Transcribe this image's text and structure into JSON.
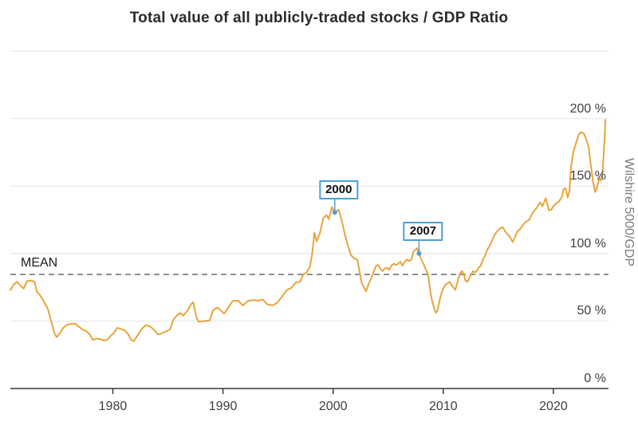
{
  "colors": {
    "background": "#ffffff",
    "line": "#e9a43c",
    "annotation_accent": "#4d9fd6",
    "mean_line": "#8f8f8f",
    "gridline": "#e4e4e4",
    "axis": "#3a3a3a",
    "tick_text": "#3f3f3f",
    "axis_title_text": "#7b7b7b",
    "title_text": "#2b2b2b"
  },
  "chart_data": {
    "type": "line",
    "title": "Total value of all publicly-traded stocks / GDP Ratio",
    "y_axis_label": "Wilshire 5000/GDP",
    "legend": "none",
    "grid": true,
    "x_domain": [
      1970.7,
      2025.0
    ],
    "y_domain": [
      0,
      250
    ],
    "x_ticks": [
      {
        "value": 1980,
        "label": "1980"
      },
      {
        "value": 1990,
        "label": "1990"
      },
      {
        "value": 2000,
        "label": "2000"
      },
      {
        "value": 2010,
        "label": "2010"
      },
      {
        "value": 2020,
        "label": "2020"
      }
    ],
    "y_ticks": [
      {
        "value": 0,
        "label": "0 %"
      },
      {
        "value": 50,
        "label": "50 %"
      },
      {
        "value": 100,
        "label": "100 %"
      },
      {
        "value": 150,
        "label": "150 %"
      },
      {
        "value": 200,
        "label": "200 %"
      }
    ],
    "y_gridlines": [
      50,
      100,
      150,
      200,
      250
    ],
    "mean": {
      "label": "MEAN",
      "value": 84.5
    },
    "annotations": [
      {
        "label": "2000",
        "year": 2000.15,
        "value": 130.5
      },
      {
        "label": "2007",
        "year": 2007.8,
        "value": 100
      }
    ],
    "series": [
      {
        "name": "Wilshire 5000/GDP",
        "unit": "%",
        "points": [
          [
            1970.7,
            73
          ],
          [
            1971.0,
            77
          ],
          [
            1971.3,
            79
          ],
          [
            1971.6,
            76.5
          ],
          [
            1971.9,
            74
          ],
          [
            1972.2,
            79.5
          ],
          [
            1972.6,
            80
          ],
          [
            1972.9,
            79
          ],
          [
            1973.1,
            72
          ],
          [
            1973.4,
            69
          ],
          [
            1973.7,
            65
          ],
          [
            1973.9,
            62
          ],
          [
            1974.1,
            59
          ],
          [
            1974.4,
            50
          ],
          [
            1974.7,
            41
          ],
          [
            1974.9,
            38
          ],
          [
            1975.2,
            41
          ],
          [
            1975.5,
            45
          ],
          [
            1975.8,
            47
          ],
          [
            1976.2,
            48
          ],
          [
            1976.6,
            48
          ],
          [
            1976.9,
            46
          ],
          [
            1977.2,
            44
          ],
          [
            1977.6,
            42.5
          ],
          [
            1977.9,
            40
          ],
          [
            1978.2,
            36
          ],
          [
            1978.5,
            37
          ],
          [
            1978.9,
            36.5
          ],
          [
            1979.2,
            35.5
          ],
          [
            1979.5,
            36
          ],
          [
            1979.8,
            39
          ],
          [
            1980.1,
            41
          ],
          [
            1980.4,
            45
          ],
          [
            1980.8,
            44
          ],
          [
            1981.1,
            43
          ],
          [
            1981.4,
            40
          ],
          [
            1981.7,
            36
          ],
          [
            1981.9,
            35
          ],
          [
            1982.3,
            40
          ],
          [
            1982.6,
            44
          ],
          [
            1983.0,
            47
          ],
          [
            1983.4,
            46
          ],
          [
            1983.8,
            43
          ],
          [
            1984.1,
            40
          ],
          [
            1984.5,
            41
          ],
          [
            1984.9,
            42.5
          ],
          [
            1985.2,
            44
          ],
          [
            1985.5,
            51
          ],
          [
            1985.8,
            54
          ],
          [
            1986.1,
            56
          ],
          [
            1986.4,
            54
          ],
          [
            1986.8,
            58
          ],
          [
            1987.1,
            62.5
          ],
          [
            1987.3,
            64
          ],
          [
            1987.6,
            52.5
          ],
          [
            1987.8,
            49.5
          ],
          [
            1988.3,
            50
          ],
          [
            1988.8,
            50.5
          ],
          [
            1989.1,
            58
          ],
          [
            1989.5,
            60
          ],
          [
            1989.8,
            58
          ],
          [
            1990.1,
            55.5
          ],
          [
            1990.4,
            59
          ],
          [
            1990.9,
            65
          ],
          [
            1991.4,
            65
          ],
          [
            1991.8,
            61.5
          ],
          [
            1992.3,
            65
          ],
          [
            1992.8,
            65.5
          ],
          [
            1993.2,
            65
          ],
          [
            1993.6,
            66
          ],
          [
            1994.0,
            62.5
          ],
          [
            1994.5,
            61.5
          ],
          [
            1994.9,
            63.5
          ],
          [
            1995.4,
            68.5
          ],
          [
            1995.8,
            73
          ],
          [
            1996.2,
            74.5
          ],
          [
            1996.6,
            78.5
          ],
          [
            1997.0,
            79
          ],
          [
            1997.3,
            84.5
          ],
          [
            1997.6,
            86
          ],
          [
            1997.9,
            90.5
          ],
          [
            1998.1,
            100
          ],
          [
            1998.3,
            115.5
          ],
          [
            1998.5,
            109
          ],
          [
            1998.8,
            115
          ],
          [
            1999.1,
            126
          ],
          [
            1999.4,
            128.5
          ],
          [
            1999.6,
            125.5
          ],
          [
            1999.9,
            134.5
          ],
          [
            2000.15,
            130
          ],
          [
            2000.5,
            132.5
          ],
          [
            2000.8,
            124
          ],
          [
            2001.1,
            113
          ],
          [
            2001.4,
            104.5
          ],
          [
            2001.6,
            99
          ],
          [
            2001.9,
            96.5
          ],
          [
            2002.2,
            95.5
          ],
          [
            2002.4,
            87
          ],
          [
            2002.6,
            78
          ],
          [
            2002.8,
            75
          ],
          [
            2003.0,
            72
          ],
          [
            2003.2,
            77
          ],
          [
            2003.5,
            82.5
          ],
          [
            2003.7,
            87
          ],
          [
            2003.9,
            91
          ],
          [
            2004.1,
            91.5
          ],
          [
            2004.3,
            88.5
          ],
          [
            2004.5,
            87
          ],
          [
            2004.7,
            89
          ],
          [
            2004.9,
            89.5
          ],
          [
            2005.1,
            88
          ],
          [
            2005.3,
            91
          ],
          [
            2005.5,
            92.5
          ],
          [
            2005.7,
            91.5
          ],
          [
            2005.9,
            92.5
          ],
          [
            2006.1,
            94
          ],
          [
            2006.3,
            91
          ],
          [
            2006.5,
            94
          ],
          [
            2006.7,
            95.5
          ],
          [
            2006.9,
            94.5
          ],
          [
            2007.1,
            95.5
          ],
          [
            2007.3,
            101.5
          ],
          [
            2007.5,
            103
          ],
          [
            2007.6,
            104
          ],
          [
            2007.8,
            100
          ],
          [
            2007.9,
            97.5
          ],
          [
            2008.1,
            94
          ],
          [
            2008.2,
            92.5
          ],
          [
            2008.4,
            88.5
          ],
          [
            2008.6,
            85
          ],
          [
            2008.8,
            74
          ],
          [
            2008.9,
            68
          ],
          [
            2009.1,
            61.5
          ],
          [
            2009.2,
            58.5
          ],
          [
            2009.35,
            56
          ],
          [
            2009.5,
            58.5
          ],
          [
            2009.6,
            63
          ],
          [
            2009.8,
            70
          ],
          [
            2010.0,
            74
          ],
          [
            2010.2,
            77
          ],
          [
            2010.4,
            78
          ],
          [
            2010.6,
            79
          ],
          [
            2010.8,
            76
          ],
          [
            2011.0,
            74
          ],
          [
            2011.1,
            73
          ],
          [
            2011.3,
            79.5
          ],
          [
            2011.5,
            85
          ],
          [
            2011.7,
            87
          ],
          [
            2011.9,
            84
          ],
          [
            2012.0,
            80
          ],
          [
            2012.2,
            79
          ],
          [
            2012.5,
            84
          ],
          [
            2012.7,
            87
          ],
          [
            2012.9,
            86
          ],
          [
            2013.1,
            88
          ],
          [
            2013.2,
            89.5
          ],
          [
            2013.4,
            91
          ],
          [
            2013.6,
            95.5
          ],
          [
            2013.8,
            98.5
          ],
          [
            2014.0,
            103
          ],
          [
            2014.2,
            105.5
          ],
          [
            2014.4,
            109
          ],
          [
            2014.6,
            113
          ],
          [
            2014.8,
            115.5
          ],
          [
            2015.0,
            117.5
          ],
          [
            2015.2,
            119
          ],
          [
            2015.4,
            119.5
          ],
          [
            2015.6,
            116.5
          ],
          [
            2015.8,
            114.5
          ],
          [
            2016.0,
            113
          ],
          [
            2016.3,
            108.5
          ],
          [
            2016.5,
            112
          ],
          [
            2016.7,
            116
          ],
          [
            2016.9,
            117.5
          ],
          [
            2017.1,
            119.5
          ],
          [
            2017.4,
            123
          ],
          [
            2017.8,
            125
          ],
          [
            2018.1,
            130
          ],
          [
            2018.5,
            134
          ],
          [
            2018.8,
            138
          ],
          [
            2019.0,
            135
          ],
          [
            2019.3,
            141
          ],
          [
            2019.6,
            132
          ],
          [
            2019.8,
            132.5
          ],
          [
            2020.0,
            135
          ],
          [
            2020.2,
            137
          ],
          [
            2020.5,
            138.5
          ],
          [
            2020.8,
            142.5
          ],
          [
            2020.9,
            147.5
          ],
          [
            2021.1,
            148.5
          ],
          [
            2021.3,
            141.5
          ],
          [
            2021.45,
            146
          ],
          [
            2021.6,
            163.5
          ],
          [
            2021.8,
            175
          ],
          [
            2022.1,
            183
          ],
          [
            2022.3,
            188
          ],
          [
            2022.5,
            190
          ],
          [
            2022.8,
            188.5
          ],
          [
            2023.0,
            184
          ],
          [
            2023.2,
            179
          ],
          [
            2023.4,
            165
          ],
          [
            2023.6,
            153
          ],
          [
            2023.8,
            145.5
          ],
          [
            2024.0,
            150
          ],
          [
            2024.15,
            156
          ],
          [
            2024.3,
            154
          ],
          [
            2024.45,
            159
          ],
          [
            2024.55,
            172
          ],
          [
            2024.65,
            186
          ],
          [
            2024.72,
            199
          ]
        ]
      }
    ]
  }
}
